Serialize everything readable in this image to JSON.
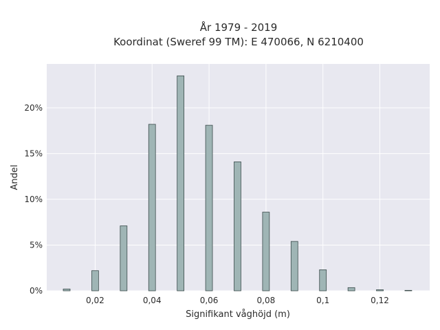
{
  "chart_data": {
    "type": "bar",
    "title_lines": [
      "År 1979 - 2019",
      "Koordinat (Sweref 99 TM): E 470066, N 6210400"
    ],
    "xlabel": "Signifikant våghöjd (m)",
    "ylabel": "Andel",
    "x": [
      0.01,
      0.02,
      0.03,
      0.04,
      0.05,
      0.06,
      0.07,
      0.08,
      0.09,
      0.1,
      0.11,
      0.12,
      0.13
    ],
    "values": [
      0.2,
      2.2,
      7.1,
      18.2,
      23.5,
      18.1,
      14.1,
      8.6,
      5.4,
      2.3,
      0.35,
      0.12,
      0.05
    ],
    "xlim": [
      0.003,
      0.1375
    ],
    "ylim": [
      0,
      24.8
    ],
    "x_ticks": [
      {
        "value": 0.02,
        "label": "0,02"
      },
      {
        "value": 0.04,
        "label": "0,04"
      },
      {
        "value": 0.06,
        "label": "0,06"
      },
      {
        "value": 0.08,
        "label": "0,08"
      },
      {
        "value": 0.1,
        "label": "0,1"
      },
      {
        "value": 0.12,
        "label": "0,12"
      }
    ],
    "y_ticks": [
      {
        "value": 0,
        "label": "0%"
      },
      {
        "value": 5,
        "label": "5%"
      },
      {
        "value": 10,
        "label": "10%"
      },
      {
        "value": 15,
        "label": "15%"
      },
      {
        "value": 20,
        "label": "20%"
      }
    ],
    "grid": true,
    "colors": {
      "plot_background": "#e8e8f0",
      "bar_fill": "#9fb5b5",
      "bar_stroke": "#3a4a4a",
      "grid": "#ffffff"
    }
  }
}
